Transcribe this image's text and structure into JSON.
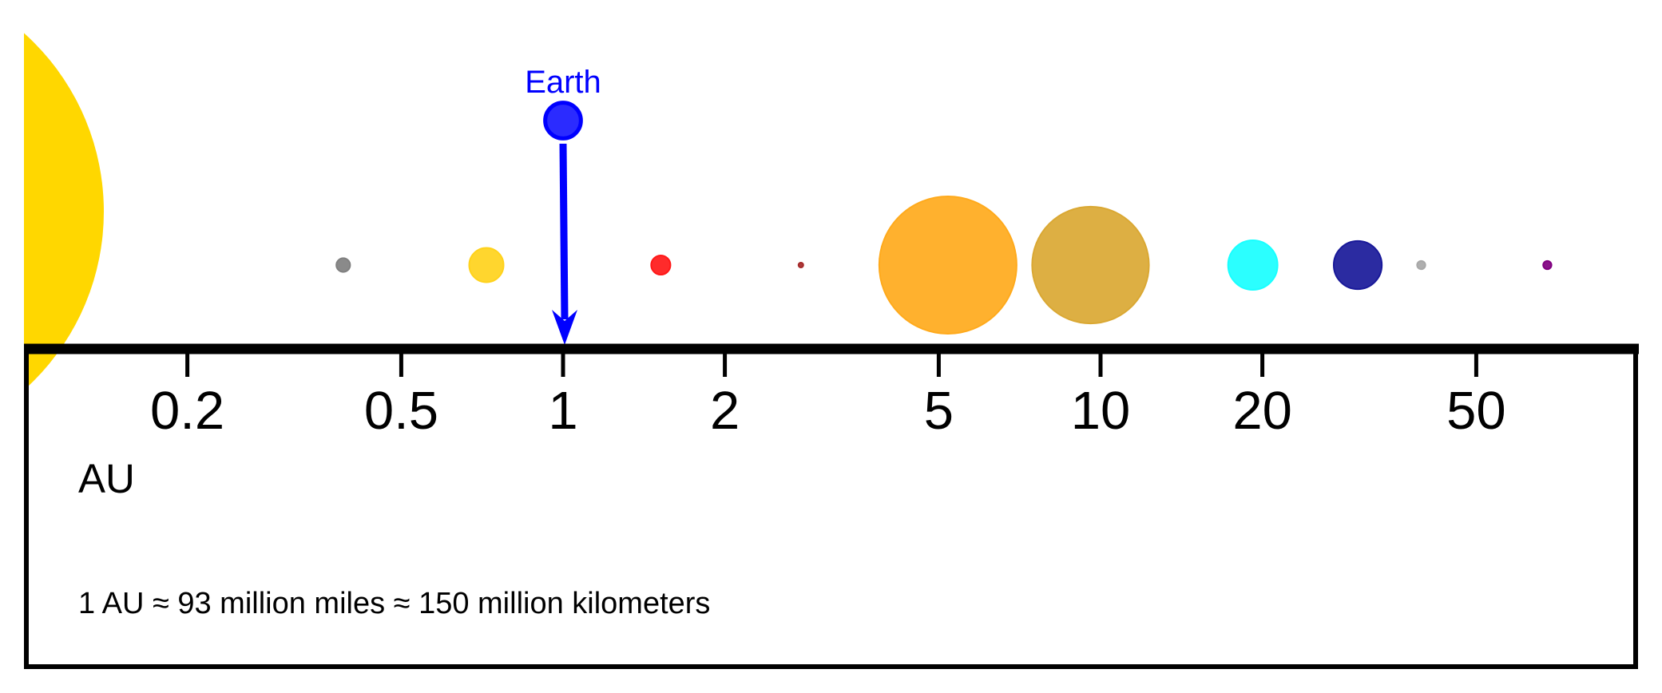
{
  "chart_data": {
    "type": "scatter",
    "xscale": "log",
    "xlim": [
      0.1,
      100
    ],
    "ticks": [
      {
        "value": 0.2,
        "label": "0.2"
      },
      {
        "value": 0.5,
        "label": "0.5"
      },
      {
        "value": 1,
        "label": "1"
      },
      {
        "value": 2,
        "label": "2"
      },
      {
        "value": 5,
        "label": "5"
      },
      {
        "value": 10,
        "label": "10"
      },
      {
        "value": 20,
        "label": "20"
      },
      {
        "value": 50,
        "label": "50"
      }
    ],
    "unit_label": "AU",
    "note": "1 AU ≈ 93 million miles ≈ 150 million kilometers",
    "sun": {
      "color": "#FFD700"
    },
    "bodies": [
      {
        "id": "mercury",
        "au": 0.39,
        "relative_size": 1.0,
        "color": "#808080"
      },
      {
        "id": "venus",
        "au": 0.72,
        "relative_size": 2.5,
        "color": "#FFD21C"
      },
      {
        "id": "earth",
        "au": 1.0,
        "relative_size": 2.6,
        "color": "#1919FF",
        "label": "Earth",
        "highlight": true
      },
      {
        "id": "mars",
        "au": 1.52,
        "relative_size": 1.4,
        "color": "#FF1919"
      },
      {
        "id": "ceres",
        "au": 2.77,
        "relative_size": 0.3,
        "color": "#A52A2A"
      },
      {
        "id": "jupiter",
        "au": 5.2,
        "relative_size": 10.0,
        "color": "#FFAA1C"
      },
      {
        "id": "saturn",
        "au": 9.58,
        "relative_size": 8.5,
        "color": "#DAA833"
      },
      {
        "id": "uranus",
        "au": 19.2,
        "relative_size": 3.6,
        "color": "#19FFFF"
      },
      {
        "id": "neptune",
        "au": 30.1,
        "relative_size": 3.5,
        "color": "#191999"
      },
      {
        "id": "pluto",
        "au": 39.5,
        "relative_size": 0.6,
        "color": "#A8A8A8"
      },
      {
        "id": "eris",
        "au": 67.8,
        "relative_size": 0.6,
        "color": "#800080"
      }
    ],
    "highlight_color": "#0000FF"
  }
}
